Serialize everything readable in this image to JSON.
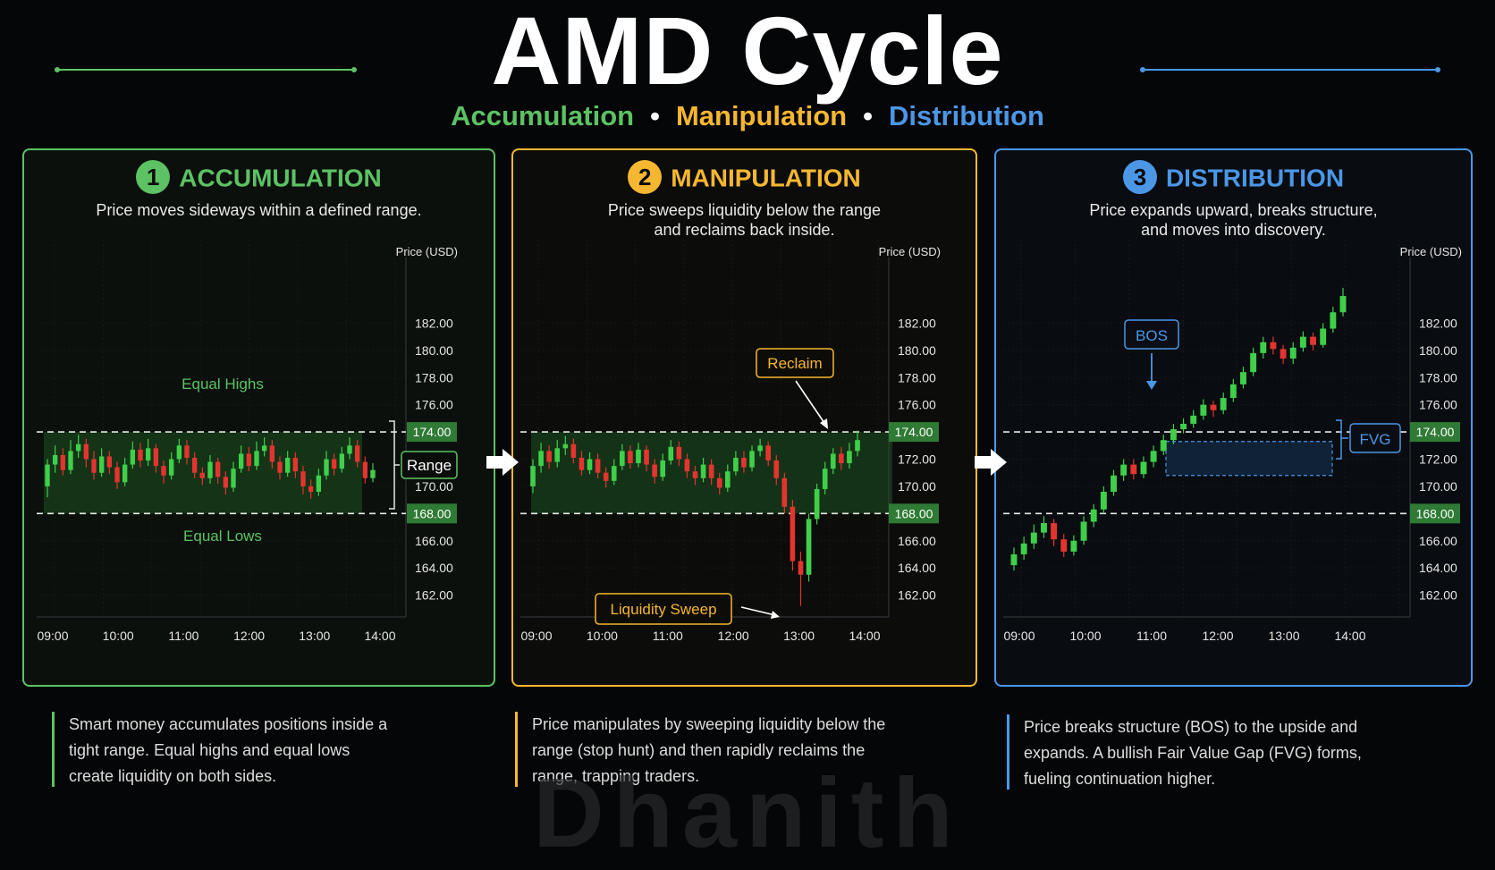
{
  "header": {
    "title": "AMD Cycle",
    "subtitle": {
      "accumulation": "Accumulation",
      "separator": "•",
      "manipulation": "Manipulation",
      "distribution": "Distribution"
    }
  },
  "colors": {
    "green": "#5cc264",
    "yellow": "#f5b731",
    "blue": "#4b97e6",
    "bull": "#3fcf4a",
    "bear": "#e3342f",
    "range_fill": "#163a1a",
    "level_tag": "#2f7a34"
  },
  "panels": [
    {
      "number": "1",
      "title": "ACCUMULATION",
      "desc_line1": "Price moves sideways within a defined range.",
      "desc_line2": ""
    },
    {
      "number": "2",
      "title": "MANIPULATION",
      "desc_line1": "Price sweeps liquidity below the range",
      "desc_line2": "and reclaims back inside."
    },
    {
      "number": "3",
      "title": "DISTRIBUTION",
      "desc_line1": "Price expands upward, breaks structure,",
      "desc_line2": "and moves into discovery."
    }
  ],
  "footer": [
    {
      "line1": "Smart money accumulates positions inside a",
      "line2": "tight range. Equal highs and equal lows",
      "line3": "create liquidity on both sides."
    },
    {
      "line1": "Price manipulates by sweeping liquidity below the",
      "line2": "range (stop hunt) and then rapidly reclaims the",
      "line3": "range, trapping traders."
    },
    {
      "line1": "Price breaks structure (BOS) to the upside and",
      "line2": "expands. A bullish Fair Value Gap (FVG) forms,",
      "line3": "fueling continuation higher."
    }
  ],
  "watermark": "Dhanith",
  "chart_data": [
    {
      "type": "candlestick",
      "ylabel": "Price (USD)",
      "ylim": [
        160,
        184
      ],
      "yticks": [
        "182.00",
        "180.00",
        "178.00",
        "176.00",
        "170.00",
        "166.00",
        "164.00",
        "162.00"
      ],
      "ytick_values": [
        182,
        180,
        178,
        176,
        170,
        166,
        164,
        162
      ],
      "x_ticks": [
        "09:00",
        "10:00",
        "11:00",
        "12:00",
        "13:00",
        "14:00"
      ],
      "levels": [
        {
          "value": 174,
          "label": "174.00"
        },
        {
          "value": 168,
          "label": "168.00"
        }
      ],
      "annotations": {
        "equal_highs": "Equal Highs",
        "equal_lows": "Equal Lows",
        "range": "Range"
      },
      "candles": [
        [
          170.0,
          171.6,
          172.0,
          169.2
        ],
        [
          171.6,
          172.3,
          173.0,
          171.0
        ],
        [
          172.3,
          171.2,
          172.8,
          170.8
        ],
        [
          171.2,
          172.6,
          173.4,
          170.9
        ],
        [
          172.6,
          173.1,
          173.8,
          172.1
        ],
        [
          173.1,
          172.0,
          173.5,
          171.4
        ],
        [
          172.0,
          171.0,
          172.6,
          170.5
        ],
        [
          171.0,
          172.2,
          172.8,
          170.7
        ],
        [
          172.2,
          171.4,
          172.6,
          170.9
        ],
        [
          171.4,
          170.3,
          171.8,
          169.8
        ],
        [
          170.3,
          171.6,
          172.1,
          170.0
        ],
        [
          171.6,
          172.7,
          173.3,
          171.3
        ],
        [
          172.7,
          171.9,
          173.2,
          171.4
        ],
        [
          171.9,
          172.8,
          173.5,
          171.5
        ],
        [
          172.8,
          171.5,
          173.1,
          171.0
        ],
        [
          171.5,
          170.8,
          171.9,
          170.2
        ],
        [
          170.8,
          172.0,
          172.5,
          170.5
        ],
        [
          172.0,
          173.0,
          173.5,
          171.7
        ],
        [
          173.0,
          172.1,
          173.4,
          171.6
        ],
        [
          172.1,
          171.0,
          172.5,
          170.6
        ],
        [
          171.0,
          170.6,
          171.4,
          170.1
        ],
        [
          170.6,
          171.8,
          172.3,
          170.2
        ],
        [
          171.8,
          170.7,
          172.1,
          170.2
        ],
        [
          170.7,
          169.9,
          171.1,
          169.4
        ],
        [
          169.9,
          171.3,
          171.8,
          169.6
        ],
        [
          171.3,
          172.4,
          173.0,
          171.0
        ],
        [
          172.4,
          171.5,
          172.9,
          171.1
        ],
        [
          171.5,
          172.6,
          173.3,
          171.2
        ],
        [
          172.6,
          173.0,
          173.6,
          172.2
        ],
        [
          173.0,
          171.8,
          173.4,
          171.3
        ],
        [
          171.8,
          171.0,
          172.2,
          170.5
        ],
        [
          171.0,
          172.1,
          172.6,
          170.7
        ],
        [
          172.1,
          171.1,
          172.5,
          170.6
        ],
        [
          171.1,
          170.0,
          171.5,
          169.4
        ],
        [
          170.0,
          169.6,
          170.5,
          169.1
        ],
        [
          169.6,
          170.8,
          171.3,
          169.3
        ],
        [
          170.8,
          172.0,
          172.6,
          170.5
        ],
        [
          172.0,
          171.3,
          172.4,
          170.8
        ],
        [
          171.3,
          172.4,
          172.9,
          171.0
        ],
        [
          172.4,
          173.0,
          173.6,
          172.0
        ],
        [
          173.0,
          171.8,
          173.4,
          171.4
        ],
        [
          171.8,
          170.6,
          172.2,
          170.2
        ],
        [
          170.6,
          171.2,
          171.7,
          170.3
        ]
      ]
    },
    {
      "type": "candlestick",
      "ylabel": "Price (USD)",
      "ylim": [
        160,
        184
      ],
      "yticks": [
        "182.00",
        "180.00",
        "178.00",
        "176.00",
        "172.00",
        "170.00",
        "166.00",
        "164.00",
        "162.00"
      ],
      "ytick_values": [
        182,
        180,
        178,
        176,
        172,
        170,
        166,
        164,
        162
      ],
      "x_ticks": [
        "09:00",
        "10:00",
        "11:00",
        "12:00",
        "13:00",
        "14:00"
      ],
      "levels": [
        {
          "value": 174,
          "label": "174.00"
        },
        {
          "value": 168,
          "label": "168.00"
        }
      ],
      "annotations": {
        "reclaim": "Reclaim",
        "liquidity_sweep": "Liquidity Sweep"
      },
      "candles": [
        [
          170.0,
          171.5,
          172.0,
          169.5
        ],
        [
          171.5,
          172.6,
          173.2,
          171.0
        ],
        [
          172.6,
          171.8,
          173.0,
          171.3
        ],
        [
          171.8,
          172.8,
          173.4,
          171.4
        ],
        [
          172.8,
          173.1,
          173.7,
          172.3
        ],
        [
          173.1,
          172.1,
          173.5,
          171.7
        ],
        [
          172.1,
          171.2,
          172.6,
          170.8
        ],
        [
          171.2,
          172.0,
          172.5,
          170.9
        ],
        [
          172.0,
          171.0,
          172.4,
          170.6
        ],
        [
          171.0,
          170.4,
          171.4,
          169.9
        ],
        [
          170.4,
          171.5,
          172.0,
          170.1
        ],
        [
          171.5,
          172.6,
          173.1,
          171.2
        ],
        [
          172.6,
          171.7,
          173.0,
          171.3
        ],
        [
          171.7,
          172.7,
          173.2,
          171.4
        ],
        [
          172.7,
          171.6,
          173.0,
          171.1
        ],
        [
          171.6,
          170.7,
          172.0,
          170.2
        ],
        [
          170.7,
          171.9,
          172.4,
          170.4
        ],
        [
          171.9,
          172.9,
          173.4,
          171.6
        ],
        [
          172.9,
          172.0,
          173.3,
          171.5
        ],
        [
          172.0,
          171.1,
          172.4,
          170.6
        ],
        [
          171.1,
          170.6,
          171.5,
          170.1
        ],
        [
          170.6,
          171.6,
          172.1,
          170.3
        ],
        [
          171.6,
          170.6,
          172.0,
          170.1
        ],
        [
          170.6,
          169.9,
          171.0,
          169.4
        ],
        [
          169.9,
          171.1,
          171.6,
          169.6
        ],
        [
          171.1,
          172.1,
          172.6,
          170.8
        ],
        [
          172.1,
          171.4,
          172.6,
          171.0
        ],
        [
          171.4,
          172.6,
          173.0,
          171.1
        ],
        [
          172.6,
          173.0,
          173.5,
          172.2
        ],
        [
          173.0,
          171.9,
          173.3,
          171.5
        ],
        [
          171.9,
          170.6,
          172.3,
          170.1
        ],
        [
          170.6,
          168.5,
          171.0,
          168.0
        ],
        [
          168.5,
          164.5,
          169.0,
          163.8
        ],
        [
          164.5,
          163.5,
          165.2,
          161.2
        ],
        [
          163.5,
          167.6,
          168.0,
          163.0
        ],
        [
          167.6,
          169.8,
          170.2,
          167.2
        ],
        [
          169.8,
          171.3,
          171.8,
          169.4
        ],
        [
          171.3,
          172.4,
          172.8,
          170.9
        ],
        [
          172.4,
          171.7,
          172.9,
          171.2
        ],
        [
          171.7,
          172.6,
          173.2,
          171.3
        ],
        [
          172.6,
          173.4,
          174.1,
          172.2
        ]
      ]
    },
    {
      "type": "candlestick",
      "ylabel": "Price (USD)",
      "ylim": [
        160,
        184
      ],
      "yticks": [
        "182.00",
        "180.00",
        "178.00",
        "176.00",
        "172.00",
        "170.00",
        "166.00",
        "164.00",
        "162.00"
      ],
      "ytick_values": [
        182,
        180,
        178,
        176,
        172,
        170,
        166,
        164,
        162
      ],
      "x_ticks": [
        "09:00",
        "10:00",
        "11:00",
        "12:00",
        "13:00",
        "14:00"
      ],
      "levels": [
        {
          "value": 174,
          "label": "174.00"
        },
        {
          "value": 168,
          "label": "168.00"
        }
      ],
      "annotations": {
        "bos": "BOS",
        "fvg": "FVG"
      },
      "fvg_zone": [
        170.8,
        173.3
      ],
      "candles": [
        [
          164.2,
          165.0,
          165.5,
          163.8
        ],
        [
          165.0,
          165.8,
          166.3,
          164.6
        ],
        [
          165.8,
          166.6,
          167.2,
          165.4
        ],
        [
          166.6,
          167.3,
          167.8,
          166.2
        ],
        [
          167.3,
          166.1,
          167.6,
          165.6
        ],
        [
          166.1,
          165.2,
          166.5,
          164.8
        ],
        [
          165.2,
          166.0,
          166.4,
          164.9
        ],
        [
          166.0,
          167.4,
          167.8,
          165.7
        ],
        [
          167.4,
          168.3,
          168.7,
          167.0
        ],
        [
          168.3,
          169.6,
          170.0,
          168.0
        ],
        [
          169.6,
          170.8,
          171.2,
          169.3
        ],
        [
          170.8,
          171.6,
          172.0,
          170.4
        ],
        [
          171.6,
          170.9,
          172.0,
          170.5
        ],
        [
          170.9,
          171.8,
          172.2,
          170.6
        ],
        [
          171.8,
          172.6,
          173.0,
          171.4
        ],
        [
          172.6,
          173.4,
          173.8,
          172.3
        ],
        [
          173.4,
          174.2,
          174.6,
          173.1
        ],
        [
          174.2,
          174.6,
          175.0,
          173.9
        ],
        [
          174.6,
          175.2,
          175.6,
          174.3
        ],
        [
          175.2,
          176.0,
          176.4,
          174.9
        ],
        [
          176.0,
          175.6,
          176.3,
          175.1
        ],
        [
          175.6,
          176.5,
          176.9,
          175.3
        ],
        [
          176.5,
          177.5,
          177.9,
          176.2
        ],
        [
          177.5,
          178.4,
          178.8,
          177.2
        ],
        [
          178.4,
          179.8,
          180.2,
          178.1
        ],
        [
          179.8,
          180.6,
          181.0,
          179.4
        ],
        [
          180.6,
          180.1,
          181.0,
          179.7
        ],
        [
          180.1,
          179.4,
          180.4,
          179.0
        ],
        [
          179.4,
          180.2,
          180.6,
          179.0
        ],
        [
          180.2,
          181.0,
          181.4,
          179.9
        ],
        [
          181.0,
          180.4,
          181.3,
          180.0
        ],
        [
          180.4,
          181.6,
          182.0,
          180.2
        ],
        [
          181.6,
          182.8,
          183.2,
          181.3
        ],
        [
          182.8,
          184.0,
          184.6,
          182.5
        ]
      ]
    }
  ]
}
